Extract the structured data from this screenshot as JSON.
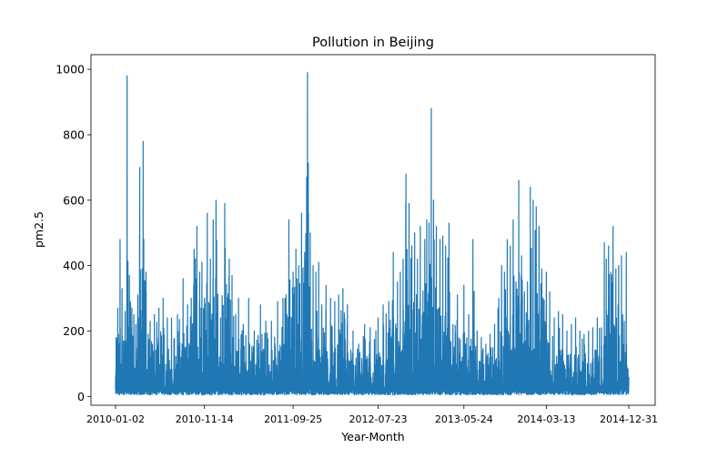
{
  "chart_data": {
    "type": "line",
    "title": "Pollution in Beijing",
    "xlabel": "Year-Month",
    "ylabel": "pm2.5",
    "x_range": [
      "2010-01-02",
      "2014-12-31"
    ],
    "ylim": [
      -27,
      1045
    ],
    "x_ticks": [
      "2010-01-02",
      "2010-11-14",
      "2011-09-25",
      "2012-07-23",
      "2013-05-24",
      "2014-03-13",
      "2014-12-31"
    ],
    "y_ticks": [
      0,
      200,
      400,
      600,
      800,
      1000
    ],
    "grid": false,
    "legend": "none",
    "series": [
      {
        "color": "#1f77b4",
        "x": [
          "2010-01-02",
          "2010-01-04",
          "2010-01-10",
          "2010-01-18",
          "2010-01-25",
          "2010-02-05",
          "2010-02-12",
          "2010-02-20",
          "2010-03-01",
          "2010-03-08",
          "2010-03-15",
          "2010-03-22",
          "2010-03-29",
          "2010-04-10",
          "2010-04-20",
          "2010-05-05",
          "2010-05-20",
          "2010-06-05",
          "2010-06-20",
          "2010-07-05",
          "2010-07-20",
          "2010-08-10",
          "2010-08-30",
          "2010-09-15",
          "2010-09-28",
          "2010-10-08",
          "2010-10-18",
          "2010-10-28",
          "2010-11-05",
          "2010-11-14",
          "2010-11-24",
          "2010-12-05",
          "2010-12-15",
          "2010-12-25",
          "2011-01-10",
          "2011-01-25",
          "2011-02-10",
          "2011-02-20",
          "2011-03-05",
          "2011-03-15",
          "2011-04-01",
          "2011-04-20",
          "2011-05-10",
          "2011-06-01",
          "2011-06-20",
          "2011-07-10",
          "2011-08-01",
          "2011-08-20",
          "2011-09-10",
          "2011-09-25",
          "2011-10-05",
          "2011-10-15",
          "2011-10-25",
          "2011-11-05",
          "2011-11-15",
          "2011-11-25",
          "2011-12-05",
          "2011-12-15",
          "2011-12-25",
          "2012-01-05",
          "2012-01-20",
          "2012-02-05",
          "2012-02-20",
          "2012-03-05",
          "2012-03-20",
          "2012-04-05",
          "2012-04-25",
          "2012-05-15",
          "2012-06-05",
          "2012-06-25",
          "2012-07-15",
          "2012-07-23",
          "2012-08-10",
          "2012-08-30",
          "2012-09-15",
          "2012-09-30",
          "2012-10-10",
          "2012-10-20",
          "2012-10-30",
          "2012-11-10",
          "2012-11-20",
          "2012-11-30",
          "2012-12-10",
          "2012-12-20",
          "2013-01-05",
          "2013-01-12",
          "2013-01-20",
          "2013-01-28",
          "2013-02-05",
          "2013-02-15",
          "2013-02-28",
          "2013-03-10",
          "2013-03-20",
          "2013-04-01",
          "2013-04-15",
          "2013-05-01",
          "2013-05-24",
          "2013-06-10",
          "2013-06-25",
          "2013-07-10",
          "2013-07-25",
          "2013-08-10",
          "2013-08-25",
          "2013-09-10",
          "2013-09-25",
          "2013-10-05",
          "2013-10-15",
          "2013-10-25",
          "2013-11-05",
          "2013-11-15",
          "2013-11-25",
          "2013-12-05",
          "2013-12-15",
          "2013-12-25",
          "2014-01-05",
          "2014-01-15",
          "2014-01-25",
          "2014-02-05",
          "2014-02-15",
          "2014-02-25",
          "2014-03-13",
          "2014-03-25",
          "2014-04-10",
          "2014-04-25",
          "2014-05-10",
          "2014-05-25",
          "2014-06-10",
          "2014-06-25",
          "2014-07-10",
          "2014-07-25",
          "2014-08-10",
          "2014-08-25",
          "2014-09-10",
          "2014-09-25",
          "2014-10-05",
          "2014-10-12",
          "2014-10-20",
          "2014-10-28",
          "2014-11-05",
          "2014-11-15",
          "2014-11-25",
          "2014-12-05",
          "2014-12-15",
          "2014-12-22",
          "2014-12-31"
        ],
        "y": [
          60,
          180,
          270,
          480,
          330,
          260,
          980,
          370,
          270,
          250,
          220,
          310,
          700,
          780,
          380,
          230,
          250,
          270,
          300,
          240,
          240,
          250,
          360,
          280,
          300,
          450,
          520,
          380,
          410,
          300,
          560,
          420,
          540,
          600,
          240,
          590,
          420,
          370,
          250,
          300,
          220,
          300,
          200,
          280,
          230,
          230,
          290,
          300,
          540,
          380,
          450,
          400,
          560,
          440,
          990,
          500,
          400,
          380,
          410,
          280,
          340,
          300,
          290,
          310,
          330,
          280,
          200,
          160,
          220,
          210,
          200,
          240,
          280,
          290,
          440,
          350,
          380,
          420,
          680,
          590,
          460,
          500,
          420,
          520,
          480,
          540,
          530,
          880,
          600,
          520,
          480,
          490,
          460,
          530,
          220,
          310,
          340,
          250,
          480,
          200,
          180,
          160,
          190,
          220,
          300,
          400,
          380,
          480,
          460,
          540,
          350,
          660,
          430,
          320,
          350,
          640,
          600,
          580,
          520,
          390,
          380,
          320,
          240,
          260,
          250,
          200,
          220,
          240,
          200,
          190,
          200,
          210,
          240,
          210,
          470,
          420,
          460,
          380,
          520,
          390,
          400,
          430,
          230,
          440,
          60
        ]
      }
    ]
  }
}
